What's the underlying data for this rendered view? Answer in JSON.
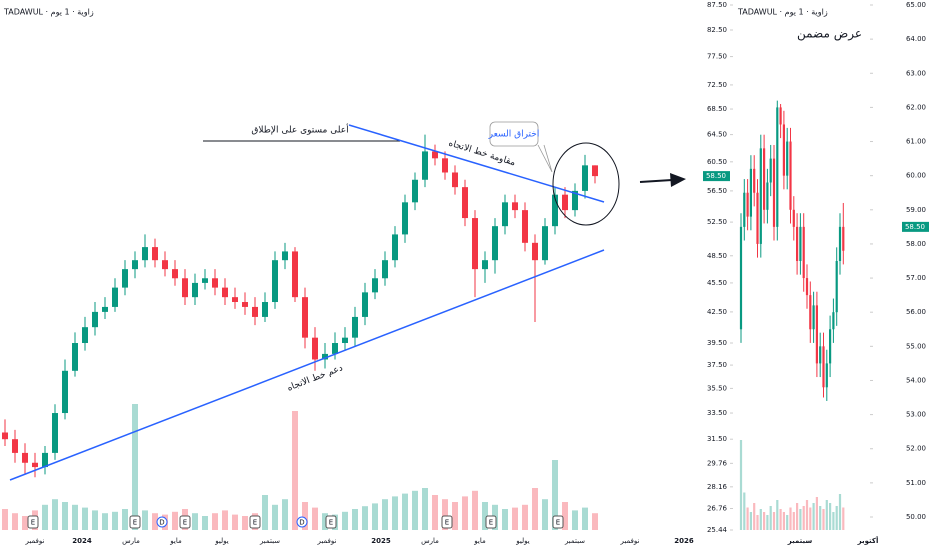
{
  "chart_data": {
    "type": "candlestick",
    "header": "TADAWUL · زاوية · 1 يوم",
    "log_scale": true,
    "up_color": "#089981",
    "down_color": "#f23645",
    "ylim": [
      25.44,
      87.5
    ],
    "yticks": [
      {
        "value": 87.5,
        "label": "87.50"
      },
      {
        "value": 82.5,
        "label": "82.50"
      },
      {
        "value": 77.5,
        "label": "77.50"
      },
      {
        "value": 72.5,
        "label": "72.50"
      },
      {
        "value": 68.5,
        "label": "68.50"
      },
      {
        "value": 64.5,
        "label": "64.50"
      },
      {
        "value": 60.5,
        "label": "60.50"
      },
      {
        "value": 56.5,
        "label": "56.50"
      },
      {
        "value": 52.5,
        "label": "52.50"
      },
      {
        "value": 48.5,
        "label": "48.50"
      },
      {
        "value": 45.5,
        "label": "45.50"
      },
      {
        "value": 42.5,
        "label": "42.50"
      },
      {
        "value": 39.5,
        "label": "39.50"
      },
      {
        "value": 37.5,
        "label": "37.50"
      },
      {
        "value": 35.5,
        "label": "35.50"
      },
      {
        "value": 33.5,
        "label": "33.50"
      },
      {
        "value": 31.5,
        "label": "31.50"
      },
      29.76,
      28.16,
      26.76,
      25.44
    ],
    "last_price": {
      "value": 58.5,
      "label": "58.50"
    },
    "x_labels": [
      "نوفمبر",
      "2024",
      "مارس",
      "مايو",
      "يوليو",
      "سبتمبر",
      "نوفمبر",
      "2025",
      "مارس",
      "مايو",
      "يوليو",
      "سبتمبر",
      "نوفمبر",
      "2026"
    ],
    "open": [
      32,
      31.5,
      30.5,
      29.8,
      29.5,
      30.5,
      33.5,
      37,
      39.5,
      41,
      42.5,
      43,
      45,
      47,
      48,
      49.5,
      48,
      47,
      46,
      44,
      45.5,
      46,
      45,
      44,
      43.5,
      43,
      42,
      43.5,
      48,
      49,
      44,
      40,
      38,
      38.5,
      39.5,
      40,
      42,
      44.5,
      46,
      48,
      51,
      55,
      58,
      62,
      61,
      59,
      57,
      53,
      47,
      48,
      52,
      55,
      54,
      50,
      48,
      52,
      56,
      54,
      56.5,
      60
    ],
    "high": [
      33,
      32.2,
      31.2,
      30.5,
      31,
      34.2,
      38,
      40.5,
      42,
      43.5,
      44,
      46,
      48,
      49,
      51,
      50.5,
      49,
      48,
      47,
      46.5,
      47,
      47,
      46,
      45,
      44.5,
      44,
      44.5,
      49,
      50,
      49.5,
      45,
      41,
      39.5,
      40.5,
      41,
      43,
      45.5,
      47,
      49,
      52,
      56,
      59,
      64.5,
      63,
      62,
      60,
      58,
      54,
      49,
      53,
      56,
      56,
      55,
      51,
      53,
      57,
      57,
      57.5,
      61.5,
      60
    ],
    "low": [
      31,
      29.8,
      29,
      28.8,
      29,
      30,
      33,
      36.5,
      38.8,
      40.2,
      41.8,
      42.5,
      44.2,
      46,
      47.2,
      47.2,
      46.2,
      45.2,
      43.2,
      43.2,
      44.8,
      44.2,
      43.2,
      42.8,
      42.2,
      41.2,
      41.5,
      42.8,
      47,
      43.5,
      39,
      37,
      37.2,
      38,
      38.8,
      39.2,
      41.2,
      43.8,
      45.2,
      47.2,
      50,
      54,
      57,
      60,
      58,
      56,
      52,
      44,
      45.5,
      46.5,
      51,
      53,
      49,
      41.5,
      47.5,
      51,
      53,
      53.2,
      55.5,
      57.5
    ],
    "close": [
      31.5,
      30.5,
      29.8,
      29.5,
      30.5,
      33.5,
      37,
      39.5,
      41,
      42.5,
      43,
      45,
      47,
      48,
      49.5,
      48,
      47,
      46,
      44,
      45.5,
      46,
      45,
      44,
      43.5,
      43,
      42,
      43.5,
      48,
      49,
      44,
      40,
      38,
      38.5,
      39.5,
      40,
      42,
      44.5,
      46,
      48,
      51,
      55,
      58,
      62,
      61,
      59,
      57,
      53,
      47,
      48,
      52,
      55,
      54,
      50,
      48,
      52,
      56,
      54,
      56.5,
      60,
      58.5
    ],
    "volume_lim": [
      0,
      100
    ],
    "volume": [
      15,
      12,
      10,
      14,
      18,
      22,
      20,
      18,
      16,
      14,
      12,
      13,
      15,
      90,
      14,
      12,
      11,
      13,
      15,
      12,
      10,
      12,
      14,
      11,
      10,
      12,
      25,
      18,
      22,
      85,
      20,
      16,
      12,
      11,
      13,
      15,
      17,
      19,
      22,
      24,
      26,
      28,
      30,
      25,
      22,
      20,
      24,
      28,
      20,
      18,
      15,
      16,
      18,
      30,
      22,
      50,
      20,
      14,
      16,
      12
    ],
    "events": [
      "E",
      "E",
      "D",
      "E",
      "E",
      "D",
      "E",
      "E",
      "E",
      "E"
    ],
    "annotations": {
      "ath": "أعلى مستوى على الإطلاق",
      "resistance": "مقاومة خط الاتجاه",
      "support": "دعم خط الاتجاه",
      "breakout": "اختراق السعر"
    },
    "inset": {
      "header": "TADAWUL · زاوية · 1 يوم",
      "title": "عرض مضمن",
      "ylim": [
        50,
        65
      ],
      "yticks": [
        {
          "value": 65,
          "label": "65.00"
        },
        {
          "value": 64,
          "label": "64.00"
        },
        {
          "value": 63,
          "label": "63.00"
        },
        {
          "value": 62,
          "label": "62.00"
        },
        {
          "value": 61,
          "label": "61.00"
        },
        {
          "value": 60,
          "label": "60.00"
        },
        {
          "value": 59,
          "label": "59.00"
        },
        {
          "value": 58,
          "label": "58.00"
        },
        {
          "value": 57,
          "label": "57.00"
        },
        {
          "value": 56,
          "label": "56.00"
        },
        {
          "value": 55,
          "label": "55.00"
        },
        {
          "value": 54,
          "label": "54.00"
        },
        {
          "value": 53,
          "label": "53.00"
        },
        {
          "value": 52,
          "label": "52.00"
        },
        {
          "value": 51,
          "label": "51.00"
        },
        {
          "value": 50,
          "label": "50.00"
        }
      ],
      "last_price": {
        "value": 58.5,
        "label": "58.50"
      },
      "x_labels": [
        "سبتمبر",
        "أكتوبر"
      ],
      "open": [
        55.5,
        58.5,
        59.5,
        58.8,
        60.2,
        59.5,
        58,
        60.8,
        59,
        59.8,
        60.5,
        58.5,
        62,
        61.5,
        60,
        61,
        59,
        58.5,
        57.5,
        58.5,
        57,
        56.5,
        55.5,
        56.2,
        54.5,
        55,
        53.8,
        54.5,
        55.5,
        56,
        57.5,
        58.5
      ],
      "high": [
        58.9,
        59.9,
        59.9,
        60.6,
        60.6,
        59.9,
        61.2,
        61.2,
        60.2,
        60.9,
        60.9,
        62.2,
        62.1,
        61.9,
        61.4,
        61.4,
        59.4,
        58.9,
        58.9,
        58.9,
        57.4,
        56.9,
        56.6,
        56.6,
        55.4,
        55.4,
        54.9,
        55.9,
        56.4,
        57.9,
        58.9,
        59.2
      ],
      "low": [
        55.1,
        58.1,
        58.4,
        58.4,
        59.1,
        57.6,
        57.6,
        58.6,
        58.6,
        59.4,
        58.1,
        58.1,
        61.1,
        59.6,
        59.6,
        58.6,
        58.1,
        57.1,
        57.1,
        56.6,
        56.1,
        55.1,
        55.1,
        54.1,
        54.1,
        53.5,
        53.4,
        54.1,
        55.1,
        55.6,
        57.1,
        57.4
      ],
      "close": [
        58.5,
        59.5,
        58.8,
        60.2,
        59.5,
        58,
        60.8,
        59,
        59.8,
        60.5,
        58.5,
        62,
        61.5,
        60,
        61,
        59,
        58.5,
        57.5,
        58.5,
        57,
        56.5,
        55.5,
        56.2,
        54.5,
        55,
        53.8,
        54.5,
        55.5,
        56,
        57.5,
        58.5,
        57.8
      ],
      "volume_lim": [
        0,
        100
      ],
      "volume": [
        60,
        25,
        15,
        12,
        18,
        10,
        14,
        12,
        10,
        16,
        12,
        20,
        14,
        12,
        10,
        15,
        12,
        18,
        14,
        16,
        20,
        15,
        18,
        22,
        16,
        14,
        20,
        18,
        12,
        16,
        24,
        15
      ]
    }
  }
}
